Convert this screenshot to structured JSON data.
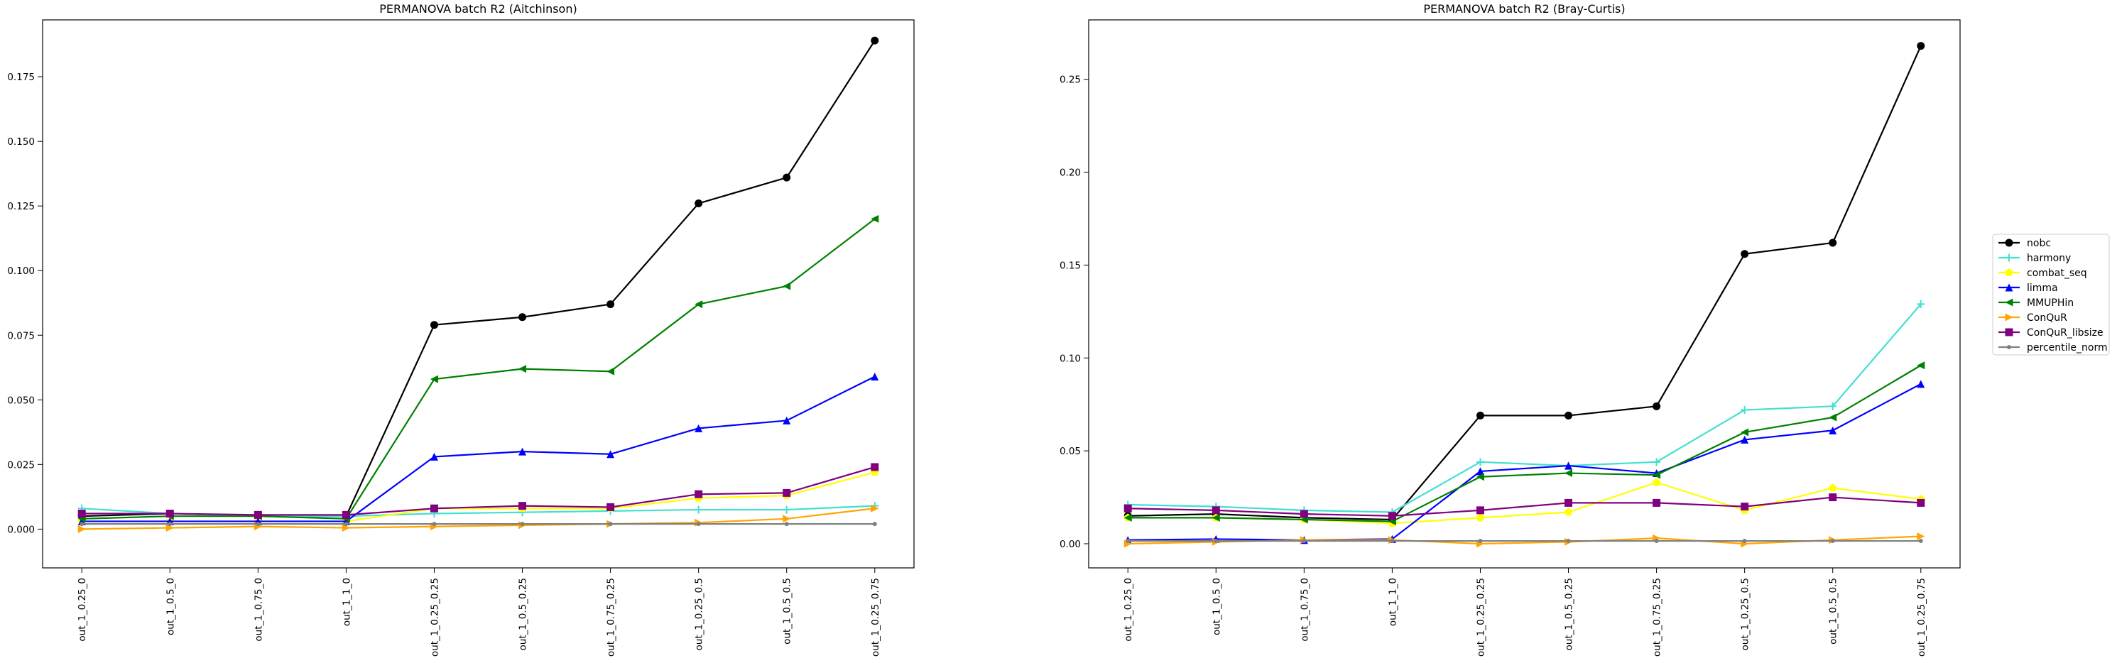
{
  "chart_data": [
    {
      "type": "line",
      "title": "PERMANOVA batch R2 (Aitchinson)",
      "xlabel": "",
      "ylabel": "",
      "categories": [
        "out_1_0.25_0",
        "out_1_0.5_0",
        "out_1_0.75_0",
        "out_1_1_0",
        "out_1_0.25_0.25",
        "out_1_0.5_0.25",
        "out_1_0.75_0.25",
        "out_1_0.25_0.5",
        "out_1_0.5_0.5",
        "out_1_0.25_0.75"
      ],
      "ylim": [
        -0.015,
        0.197
      ],
      "yticks": [
        0.0,
        0.025,
        0.05,
        0.075,
        0.1,
        0.125,
        0.15,
        0.175
      ],
      "ytick_labels": [
        "0.000",
        "0.025",
        "0.050",
        "0.075",
        "0.100",
        "0.125",
        "0.150",
        "0.175"
      ],
      "grid": false,
      "series": [
        {
          "name": "nobc",
          "color": "#000000",
          "marker": "circle",
          "values": [
            0.005,
            0.006,
            0.005,
            0.005,
            0.079,
            0.082,
            0.087,
            0.126,
            0.136,
            0.189
          ]
        },
        {
          "name": "harmony",
          "color": "#40e0d0",
          "marker": "plus",
          "values": [
            0.008,
            0.006,
            0.005,
            0.005,
            0.006,
            0.0065,
            0.007,
            0.0075,
            0.0075,
            0.009
          ]
        },
        {
          "name": "combat_seq",
          "color": "#ffff00",
          "marker": "pentagon",
          "values": [
            0.003,
            0.003,
            0.003,
            0.003,
            0.008,
            0.008,
            0.008,
            0.012,
            0.013,
            0.022
          ]
        },
        {
          "name": "limma",
          "color": "#0000ff",
          "marker": "triangle-up",
          "values": [
            0.003,
            0.003,
            0.003,
            0.003,
            0.028,
            0.03,
            0.029,
            0.039,
            0.042,
            0.059
          ]
        },
        {
          "name": "MMUPHin",
          "color": "#008000",
          "marker": "triangle-left",
          "values": [
            0.004,
            0.005,
            0.005,
            0.004,
            0.058,
            0.062,
            0.061,
            0.087,
            0.094,
            0.12
          ]
        },
        {
          "name": "ConQuR",
          "color": "#ffa500",
          "marker": "triangle-right",
          "values": [
            0.0,
            0.0005,
            0.001,
            0.0005,
            0.001,
            0.0015,
            0.002,
            0.0025,
            0.004,
            0.008
          ]
        },
        {
          "name": "ConQuR_libsize",
          "color": "#800080",
          "marker": "square",
          "values": [
            0.006,
            0.006,
            0.0055,
            0.0055,
            0.008,
            0.009,
            0.0085,
            0.0135,
            0.014,
            0.024
          ]
        },
        {
          "name": "percentile_norm",
          "color": "#808080",
          "marker": "point",
          "values": [
            0.002,
            0.002,
            0.002,
            0.002,
            0.002,
            0.002,
            0.002,
            0.002,
            0.002,
            0.002
          ]
        }
      ]
    },
    {
      "type": "line",
      "title": "PERMANOVA batch R2 (Bray-Curtis)",
      "xlabel": "",
      "ylabel": "",
      "categories": [
        "out_1_0.25_0",
        "out_1_0.5_0",
        "out_1_0.75_0",
        "out_1_1_0",
        "out_1_0.25_0.25",
        "out_1_0.5_0.25",
        "out_1_0.75_0.25",
        "out_1_0.25_0.5",
        "out_1_0.5_0.5",
        "out_1_0.25_0.75"
      ],
      "ylim": [
        -0.013,
        0.282
      ],
      "yticks": [
        0.0,
        0.05,
        0.1,
        0.15,
        0.2,
        0.25
      ],
      "ytick_labels": [
        "0.00",
        "0.05",
        "0.10",
        "0.15",
        "0.20",
        "0.25"
      ],
      "grid": false,
      "legend": "right-outside",
      "series": [
        {
          "name": "nobc",
          "color": "#000000",
          "marker": "circle",
          "values": [
            0.015,
            0.016,
            0.014,
            0.013,
            0.069,
            0.069,
            0.074,
            0.156,
            0.162,
            0.268
          ]
        },
        {
          "name": "harmony",
          "color": "#40e0d0",
          "marker": "plus",
          "values": [
            0.021,
            0.02,
            0.018,
            0.017,
            0.044,
            0.042,
            0.044,
            0.072,
            0.074,
            0.129
          ]
        },
        {
          "name": "combat_seq",
          "color": "#ffff00",
          "marker": "pentagon",
          "values": [
            0.014,
            0.014,
            0.013,
            0.011,
            0.014,
            0.017,
            0.033,
            0.018,
            0.03,
            0.024
          ]
        },
        {
          "name": "limma",
          "color": "#0000ff",
          "marker": "triangle-up",
          "values": [
            0.002,
            0.0025,
            0.002,
            0.0025,
            0.039,
            0.042,
            0.038,
            0.056,
            0.061,
            0.086
          ]
        },
        {
          "name": "MMUPHin",
          "color": "#008000",
          "marker": "triangle-left",
          "values": [
            0.014,
            0.014,
            0.013,
            0.012,
            0.036,
            0.038,
            0.037,
            0.06,
            0.068,
            0.096
          ]
        },
        {
          "name": "ConQuR",
          "color": "#ffa500",
          "marker": "triangle-right",
          "values": [
            0.0,
            0.001,
            0.002,
            0.002,
            0.0,
            0.001,
            0.003,
            0.0,
            0.002,
            0.004
          ]
        },
        {
          "name": "ConQuR_libsize",
          "color": "#800080",
          "marker": "square",
          "values": [
            0.019,
            0.018,
            0.016,
            0.015,
            0.018,
            0.022,
            0.022,
            0.02,
            0.025,
            0.022
          ]
        },
        {
          "name": "percentile_norm",
          "color": "#808080",
          "marker": "point",
          "values": [
            0.0015,
            0.0015,
            0.0015,
            0.0015,
            0.0015,
            0.0015,
            0.0015,
            0.0015,
            0.0015,
            0.0015
          ]
        }
      ]
    }
  ]
}
